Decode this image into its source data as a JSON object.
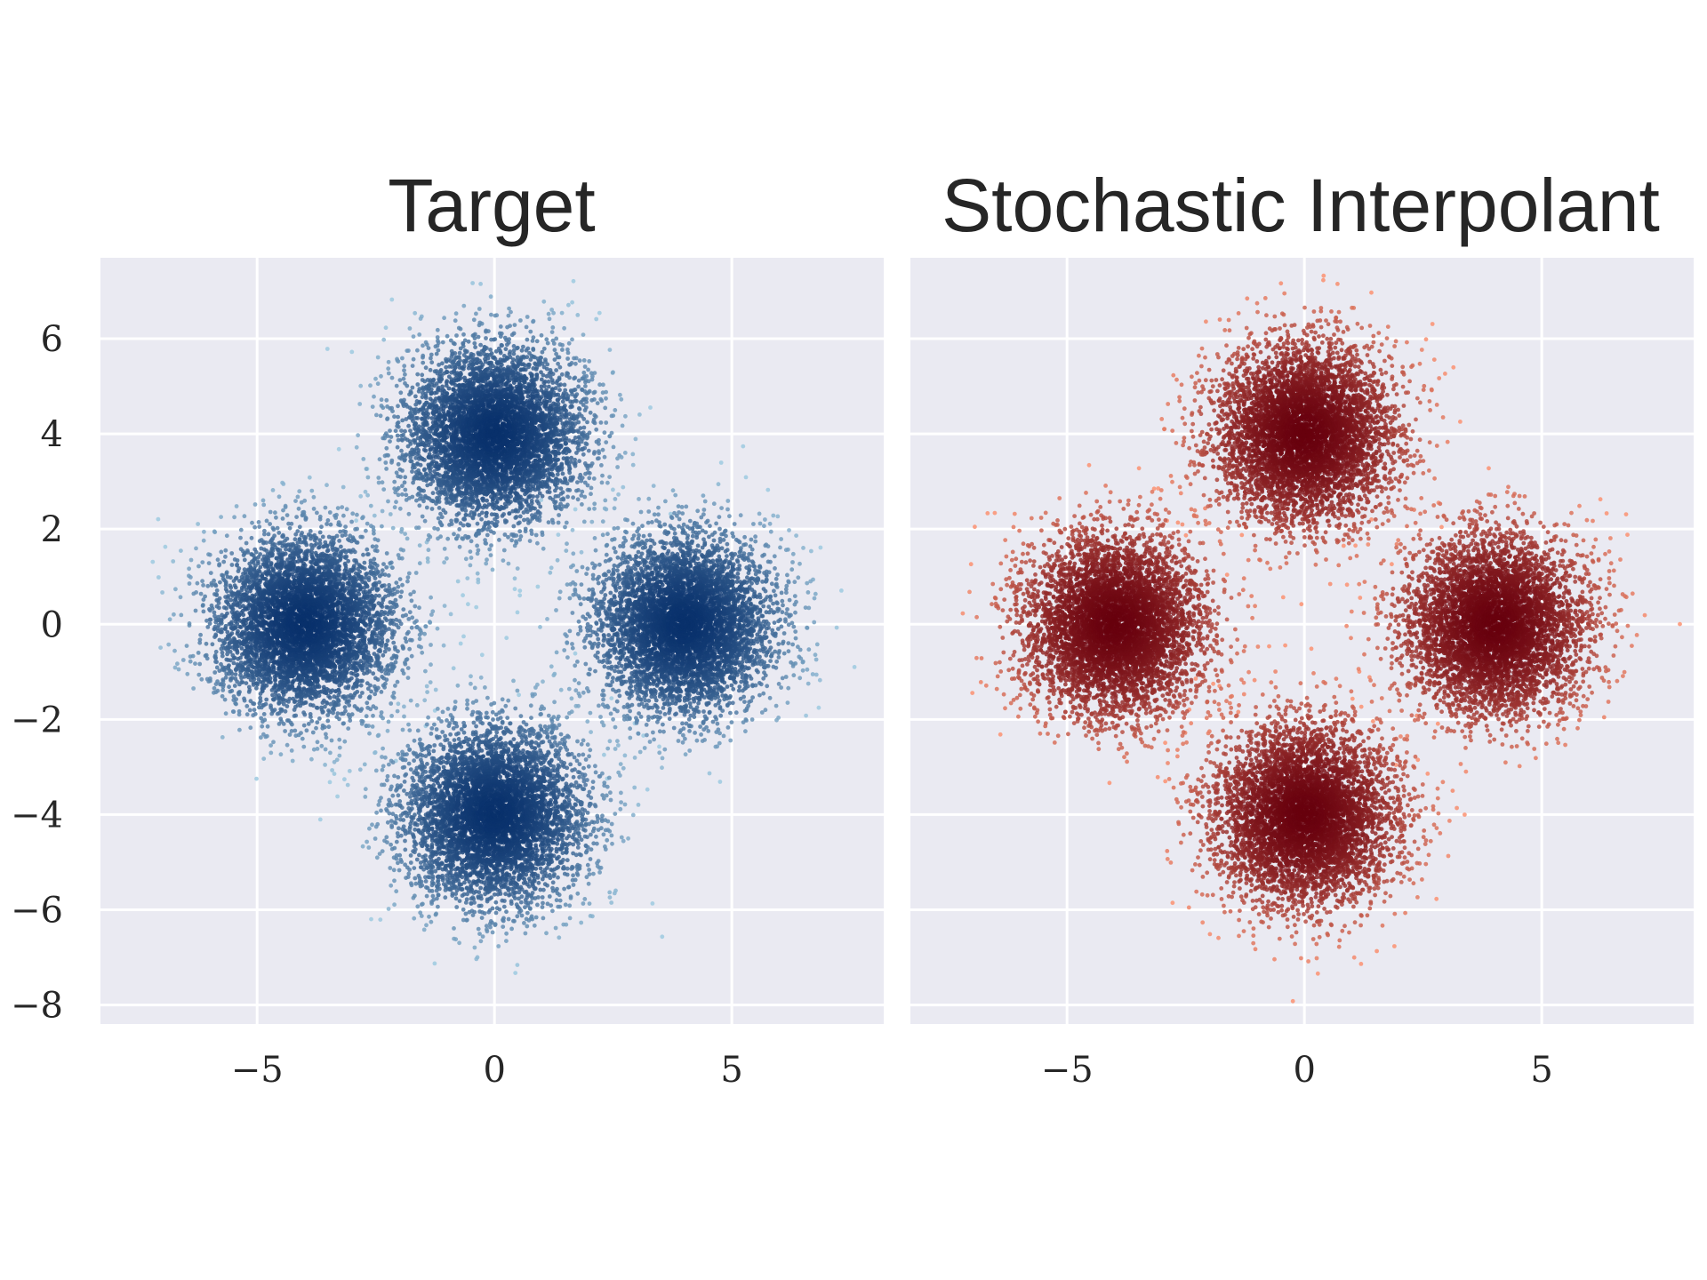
{
  "chart_data": [
    {
      "type": "scatter",
      "title": "Target",
      "xlabel": "",
      "ylabel": "",
      "xlim": [
        -8.3,
        8.2
      ],
      "ylim": [
        -8.4,
        7.7
      ],
      "xticks": [
        -5,
        0,
        5
      ],
      "yticks": [
        -8,
        -6,
        -4,
        -2,
        0,
        2,
        4,
        6
      ],
      "xtick_labels": [
        "−5",
        "0",
        "5"
      ],
      "ytick_labels": [
        "−8",
        "−6",
        "−4",
        "−2",
        "0",
        "2",
        "4",
        "6"
      ],
      "grid": true,
      "colormap": "Blues (darker = higher density)",
      "point_color_dark": "#08306b",
      "point_color_light": "#9ecae1",
      "series": [
        {
          "center": [
            -4,
            0
          ],
          "std": 0.95,
          "points": 5000
        },
        {
          "center": [
            0,
            4
          ],
          "std": 0.95,
          "points": 5000
        },
        {
          "center": [
            4,
            0
          ],
          "std": 0.95,
          "points": 5000
        },
        {
          "center": [
            0,
            -4
          ],
          "std": 0.95,
          "points": 5000
        }
      ]
    },
    {
      "type": "scatter",
      "title": "Stochastic Interpolant",
      "xlabel": "",
      "ylabel": "",
      "xlim": [
        -8.3,
        8.2
      ],
      "ylim": [
        -8.4,
        7.7
      ],
      "xticks": [
        -5,
        0,
        5
      ],
      "yticks": [
        -8,
        -6,
        -4,
        -2,
        0,
        2,
        4,
        6
      ],
      "xtick_labels": [
        "−5",
        "0",
        "5"
      ],
      "ytick_labels": [],
      "grid": true,
      "colormap": "Reds (darker = higher density)",
      "point_color_dark": "#67000d",
      "point_color_light": "#fc9272",
      "series": [
        {
          "center": [
            -4,
            0
          ],
          "std": 0.95,
          "points": 5000
        },
        {
          "center": [
            0,
            4
          ],
          "std": 0.95,
          "points": 5000
        },
        {
          "center": [
            4,
            0
          ],
          "std": 0.95,
          "points": 5000
        },
        {
          "center": [
            0,
            -4
          ],
          "std": 0.95,
          "points": 5000
        }
      ]
    }
  ]
}
